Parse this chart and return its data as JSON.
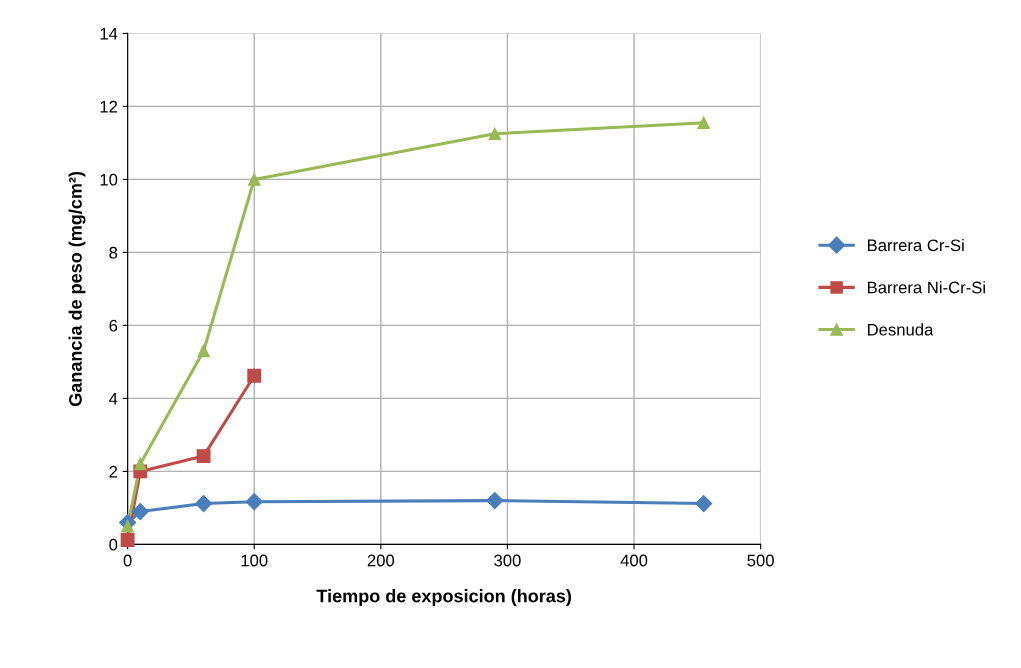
{
  "chart_data": {
    "type": "line",
    "xlabel": "Tiempo de exposicion (horas)",
    "ylabel": "Ganancia de peso (mg/cm²)",
    "xlim": [
      0,
      500
    ],
    "ylim": [
      0,
      14
    ],
    "xticks": [
      0,
      100,
      200,
      300,
      400,
      500
    ],
    "yticks": [
      0,
      2,
      4,
      6,
      8,
      10,
      12,
      14
    ],
    "grid": true,
    "legend": "right",
    "series": [
      {
        "name": "Barrera Cr-Si",
        "color": "#4a7ebb",
        "marker": "diamond",
        "x": [
          0,
          10,
          60,
          100,
          290,
          455
        ],
        "values": [
          0.6,
          0.9,
          1.12,
          1.17,
          1.2,
          1.12
        ]
      },
      {
        "name": "Barrera Ni-Cr-Si",
        "color": "#be4b48",
        "marker": "square",
        "x": [
          0,
          10,
          60,
          100
        ],
        "values": [
          0.12,
          2.0,
          2.42,
          4.62
        ]
      },
      {
        "name": "Desnuda",
        "color": "#98b954",
        "marker": "triangle",
        "x": [
          0,
          10,
          60,
          100,
          290,
          455
        ],
        "values": [
          0.5,
          2.2,
          5.3,
          10.0,
          11.25,
          11.55
        ]
      }
    ]
  }
}
